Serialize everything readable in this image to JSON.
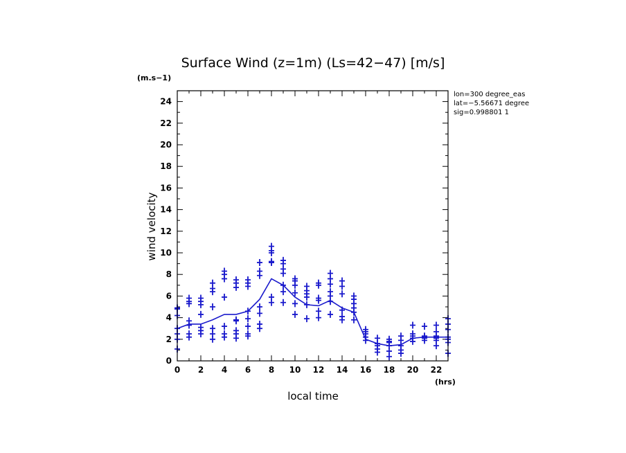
{
  "chart_data": {
    "type": "scatter",
    "title": "Surface Wind (z=1m) (Ls=42−47) [m/s]",
    "y_unit_label": "(m.s−1)",
    "x_unit_label": "(hrs)",
    "xlabel": "local time",
    "ylabel": "wind velocity",
    "xlim": [
      0,
      23
    ],
    "ylim": [
      0,
      25
    ],
    "x_ticks": [
      0,
      2,
      4,
      6,
      8,
      10,
      12,
      14,
      16,
      18,
      20,
      22
    ],
    "y_ticks": [
      0,
      2,
      4,
      6,
      8,
      10,
      12,
      14,
      16,
      18,
      20,
      22,
      24
    ],
    "info_lines": [
      "lon=300 degree_eas",
      "lat=−5.56671 degree",
      "sig=0.998801 1"
    ],
    "color": "#1a1acc",
    "mean_line": {
      "name": "mean",
      "x": [
        0,
        1,
        2,
        3,
        4,
        5,
        6,
        7,
        8,
        9,
        10,
        11,
        12,
        13,
        14,
        15,
        16,
        17,
        18,
        19,
        20,
        21,
        22,
        23
      ],
      "y": [
        3.0,
        3.4,
        3.4,
        3.8,
        4.3,
        4.3,
        4.6,
        5.7,
        7.6,
        7.0,
        5.9,
        5.2,
        5.1,
        5.6,
        4.9,
        4.5,
        2.0,
        1.6,
        1.4,
        1.5,
        2.1,
        2.2,
        2.2,
        2.2
      ]
    },
    "points": {
      "name": "samples",
      "x": [
        0,
        0,
        0,
        0,
        0,
        0,
        0,
        1,
        1,
        1,
        1,
        1,
        1,
        1,
        2,
        2,
        2,
        2,
        2,
        2,
        2,
        3,
        3,
        3,
        3,
        3,
        3,
        3,
        4,
        4,
        4,
        4,
        4,
        4,
        4,
        5,
        5,
        5,
        5,
        5,
        5,
        5,
        5,
        6,
        6,
        6,
        6,
        6,
        6,
        6,
        6,
        7,
        7,
        7,
        7,
        7,
        7,
        7,
        8,
        8,
        8,
        8,
        8,
        8,
        8,
        9,
        9,
        9,
        9,
        9,
        9,
        9,
        10,
        10,
        10,
        10,
        10,
        10,
        11,
        11,
        11,
        11,
        11,
        11,
        12,
        12,
        12,
        12,
        12,
        12,
        13,
        13,
        13,
        13,
        13,
        13,
        13,
        14,
        14,
        14,
        14,
        14,
        14,
        15,
        15,
        15,
        15,
        15,
        15,
        16,
        16,
        16,
        16,
        16,
        17,
        17,
        17,
        17,
        17,
        18,
        18,
        18,
        18,
        18,
        18,
        19,
        19,
        19,
        19,
        19,
        20,
        20,
        20,
        20,
        20,
        21,
        21,
        21,
        21,
        21,
        22,
        22,
        22,
        22,
        22,
        22,
        23,
        23,
        23,
        23,
        23,
        23,
        23
      ],
      "y": [
        1.1,
        2.0,
        2.5,
        3.0,
        4.2,
        4.8,
        4.9,
        2.2,
        2.5,
        3.3,
        3.7,
        5.3,
        5.5,
        5.8,
        2.5,
        2.8,
        3.1,
        4.3,
        5.2,
        5.5,
        5.8,
        2.0,
        2.5,
        3.0,
        5.0,
        6.4,
        6.7,
        7.2,
        2.2,
        2.5,
        3.2,
        5.9,
        7.6,
        8.0,
        8.3,
        2.1,
        2.5,
        2.8,
        3.7,
        3.8,
        6.8,
        7.2,
        7.5,
        2.3,
        2.5,
        3.2,
        3.9,
        4.6,
        6.9,
        7.2,
        7.5,
        3.0,
        3.4,
        4.4,
        5.0,
        7.9,
        8.3,
        9.1,
        5.4,
        5.9,
        9.1,
        9.2,
        10.0,
        10.2,
        10.6,
        5.4,
        6.4,
        7.0,
        8.1,
        8.5,
        9.0,
        9.3,
        4.3,
        5.3,
        6.3,
        7.0,
        7.4,
        7.6,
        3.9,
        5.2,
        5.9,
        6.2,
        6.5,
        6.9,
        4.0,
        4.6,
        5.6,
        5.8,
        7.0,
        7.2,
        4.3,
        5.5,
        6.0,
        6.4,
        7.1,
        7.6,
        8.1,
        3.8,
        4.1,
        4.7,
        6.2,
        6.9,
        7.4,
        3.8,
        4.5,
        4.9,
        5.3,
        5.7,
        6.0,
        1.9,
        2.2,
        2.5,
        2.7,
        2.9,
        0.8,
        1.1,
        1.4,
        1.6,
        2.1,
        0.4,
        0.9,
        1.4,
        1.7,
        1.8,
        2.0,
        0.7,
        1.0,
        1.4,
        1.9,
        2.3,
        1.8,
        2.1,
        2.3,
        2.5,
        3.3,
        1.9,
        2.1,
        2.2,
        2.3,
        3.2,
        1.4,
        1.9,
        2.1,
        2.3,
        2.7,
        3.3,
        0.7,
        1.7,
        2.0,
        2.2,
        2.9,
        3.4,
        3.9
      ]
    }
  }
}
